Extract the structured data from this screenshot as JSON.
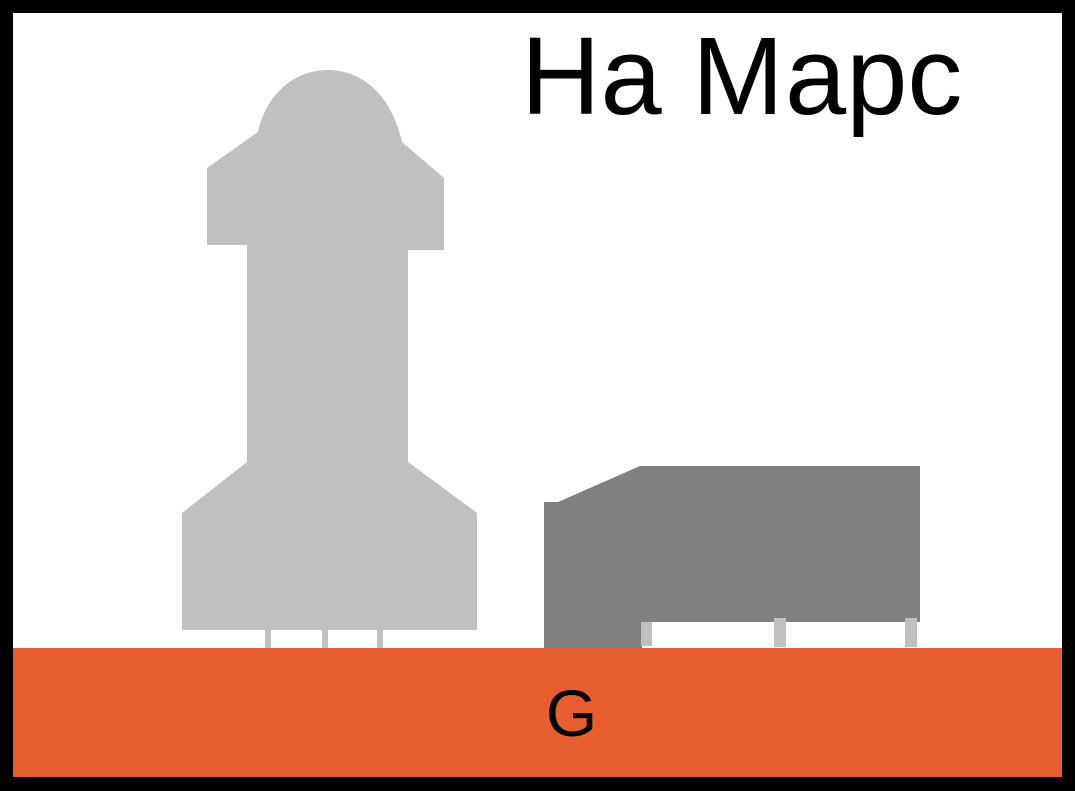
{
  "title": "На Марс",
  "ground": {
    "label": "G",
    "color": "#E85E2E"
  },
  "colors": {
    "frame": "#000000",
    "background": "#FFFFFF",
    "left_shape": "#C0C0C0",
    "right_shape": "#808080",
    "legs": "#C0C0C0"
  }
}
